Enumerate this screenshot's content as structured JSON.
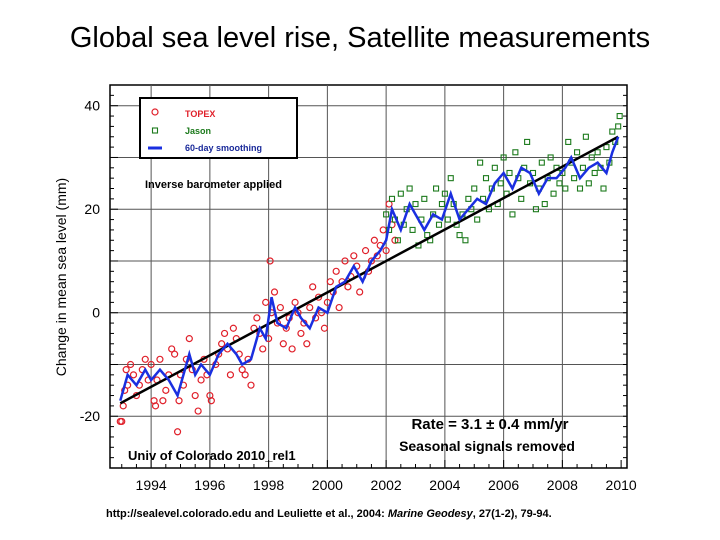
{
  "title": "Global sea level rise, Satellite measurements",
  "source": {
    "text": "http://sealevel.colorado.edu and Leuliette et al., 2004: ",
    "journal": "Marine Geodesy",
    "ref": ", 27(1-2), 79-94."
  },
  "chart_data": {
    "type": "scatter",
    "title": "Global sea level rise, Satellite measurements",
    "xlabel": "",
    "ylabel": "Change in mean sea level (mm)",
    "xlim": [
      1992.6,
      2010.2
    ],
    "ylim": [
      -30,
      44
    ],
    "xticks": [
      "1994",
      "1996",
      "1998",
      "2000",
      "2002",
      "2004",
      "2006",
      "2008",
      "2010"
    ],
    "yticks": [
      "40",
      "20",
      "0",
      "-20"
    ],
    "grid": true,
    "legend_position": "top-left",
    "annotations": [
      "Inverse barometer applied",
      "Rate = 3.1 ± 0.4 mm/yr",
      "Seasonal signals removed",
      "Univ of Colorado 2010_rel1"
    ],
    "colors": {
      "topex": "#e0202a",
      "jason": "#1c7a1c",
      "smoothing": "#1a2fe0",
      "trend": "#000000"
    },
    "series": [
      {
        "name": "TOPEX",
        "marker": "circle",
        "points": [
          [
            1992.95,
            -21
          ],
          [
            1993.0,
            -21
          ],
          [
            1993.05,
            -18
          ],
          [
            1993.1,
            -15
          ],
          [
            1993.15,
            -11
          ],
          [
            1993.2,
            -14
          ],
          [
            1993.3,
            -10
          ],
          [
            1993.4,
            -12
          ],
          [
            1993.5,
            -16
          ],
          [
            1993.6,
            -14
          ],
          [
            1993.7,
            -11
          ],
          [
            1993.8,
            -9
          ],
          [
            1993.9,
            -13
          ],
          [
            1994.0,
            -10
          ],
          [
            1994.1,
            -17
          ],
          [
            1994.15,
            -18
          ],
          [
            1994.2,
            -13
          ],
          [
            1994.3,
            -9
          ],
          [
            1994.4,
            -17
          ],
          [
            1994.5,
            -15
          ],
          [
            1994.6,
            -12
          ],
          [
            1994.7,
            -7
          ],
          [
            1994.8,
            -8
          ],
          [
            1994.9,
            -23
          ],
          [
            1994.95,
            -17
          ],
          [
            1995.0,
            -12
          ],
          [
            1995.1,
            -14
          ],
          [
            1995.2,
            -9
          ],
          [
            1995.3,
            -5
          ],
          [
            1995.4,
            -11
          ],
          [
            1995.5,
            -16
          ],
          [
            1995.6,
            -19
          ],
          [
            1995.7,
            -13
          ],
          [
            1995.8,
            -9
          ],
          [
            1995.9,
            -12
          ],
          [
            1996.0,
            -16
          ],
          [
            1996.05,
            -17
          ],
          [
            1996.2,
            -10
          ],
          [
            1996.3,
            -8
          ],
          [
            1996.4,
            -6
          ],
          [
            1996.5,
            -4
          ],
          [
            1996.6,
            -7
          ],
          [
            1996.7,
            -12
          ],
          [
            1996.8,
            -3
          ],
          [
            1996.9,
            -5
          ],
          [
            1997.0,
            -8
          ],
          [
            1997.1,
            -11
          ],
          [
            1997.2,
            -12
          ],
          [
            1997.3,
            -9
          ],
          [
            1997.4,
            -14
          ],
          [
            1997.5,
            -3
          ],
          [
            1997.6,
            -1
          ],
          [
            1997.7,
            -4
          ],
          [
            1997.8,
            -7
          ],
          [
            1997.9,
            2
          ],
          [
            1998.0,
            -5
          ],
          [
            1998.05,
            10
          ],
          [
            1998.1,
            0
          ],
          [
            1998.2,
            4
          ],
          [
            1998.3,
            -2
          ],
          [
            1998.4,
            1
          ],
          [
            1998.5,
            -6
          ],
          [
            1998.6,
            -3
          ],
          [
            1998.7,
            -1
          ],
          [
            1998.8,
            -7
          ],
          [
            1998.9,
            2
          ],
          [
            1999.0,
            0
          ],
          [
            1999.1,
            -4
          ],
          [
            1999.2,
            -2
          ],
          [
            1999.3,
            -6
          ],
          [
            1999.4,
            1
          ],
          [
            1999.5,
            5
          ],
          [
            1999.6,
            -1
          ],
          [
            1999.7,
            3
          ],
          [
            1999.8,
            0
          ],
          [
            1999.9,
            -3
          ],
          [
            2000.0,
            2
          ],
          [
            2000.1,
            6
          ],
          [
            2000.2,
            4
          ],
          [
            2000.3,
            8
          ],
          [
            2000.4,
            1
          ],
          [
            2000.5,
            6
          ],
          [
            2000.6,
            10
          ],
          [
            2000.7,
            5
          ],
          [
            2000.8,
            7
          ],
          [
            2000.9,
            11
          ],
          [
            2001.0,
            9
          ],
          [
            2001.1,
            4
          ],
          [
            2001.2,
            7
          ],
          [
            2001.3,
            12
          ],
          [
            2001.4,
            8
          ],
          [
            2001.5,
            10
          ],
          [
            2001.6,
            14
          ],
          [
            2001.7,
            11
          ],
          [
            2001.8,
            13
          ],
          [
            2001.9,
            16
          ],
          [
            2002.0,
            12
          ],
          [
            2002.1,
            21
          ],
          [
            2002.2,
            17
          ],
          [
            2002.3,
            14
          ]
        ]
      },
      {
        "name": "Jason",
        "marker": "square",
        "points": [
          [
            2002.0,
            19
          ],
          [
            2002.1,
            16
          ],
          [
            2002.2,
            22
          ],
          [
            2002.3,
            18
          ],
          [
            2002.4,
            14
          ],
          [
            2002.5,
            23
          ],
          [
            2002.6,
            17
          ],
          [
            2002.7,
            20
          ],
          [
            2002.8,
            24
          ],
          [
            2002.9,
            16
          ],
          [
            2003.0,
            21
          ],
          [
            2003.1,
            13
          ],
          [
            2003.2,
            18
          ],
          [
            2003.3,
            22
          ],
          [
            2003.4,
            15
          ],
          [
            2003.5,
            14
          ],
          [
            2003.6,
            19
          ],
          [
            2003.7,
            24
          ],
          [
            2003.8,
            17
          ],
          [
            2003.9,
            21
          ],
          [
            2004.0,
            23
          ],
          [
            2004.1,
            18
          ],
          [
            2004.2,
            26
          ],
          [
            2004.3,
            21
          ],
          [
            2004.4,
            17
          ],
          [
            2004.5,
            15
          ],
          [
            2004.6,
            19
          ],
          [
            2004.7,
            14
          ],
          [
            2004.8,
            22
          ],
          [
            2004.9,
            20
          ],
          [
            2005.0,
            24
          ],
          [
            2005.1,
            18
          ],
          [
            2005.2,
            29
          ],
          [
            2005.3,
            22
          ],
          [
            2005.4,
            26
          ],
          [
            2005.5,
            20
          ],
          [
            2005.6,
            24
          ],
          [
            2005.7,
            28
          ],
          [
            2005.8,
            21
          ],
          [
            2005.9,
            25
          ],
          [
            2006.0,
            30
          ],
          [
            2006.1,
            23
          ],
          [
            2006.2,
            27
          ],
          [
            2006.3,
            19
          ],
          [
            2006.4,
            31
          ],
          [
            2006.5,
            26
          ],
          [
            2006.6,
            22
          ],
          [
            2006.7,
            28
          ],
          [
            2006.8,
            33
          ],
          [
            2006.9,
            25
          ],
          [
            2007.0,
            27
          ],
          [
            2007.1,
            20
          ],
          [
            2007.2,
            24
          ],
          [
            2007.3,
            29
          ],
          [
            2007.4,
            21
          ],
          [
            2007.5,
            26
          ],
          [
            2007.6,
            30
          ],
          [
            2007.7,
            23
          ],
          [
            2007.8,
            28
          ],
          [
            2007.9,
            25
          ],
          [
            2008.0,
            27
          ],
          [
            2008.1,
            24
          ],
          [
            2008.2,
            33
          ],
          [
            2008.3,
            29
          ],
          [
            2008.4,
            26
          ],
          [
            2008.5,
            31
          ],
          [
            2008.6,
            24
          ],
          [
            2008.7,
            28
          ],
          [
            2008.8,
            34
          ],
          [
            2008.9,
            25
          ],
          [
            2009.0,
            30
          ],
          [
            2009.1,
            27
          ],
          [
            2009.2,
            31
          ],
          [
            2009.3,
            28
          ],
          [
            2009.4,
            24
          ],
          [
            2009.5,
            32
          ],
          [
            2009.6,
            29
          ],
          [
            2009.7,
            35
          ],
          [
            2009.8,
            33
          ],
          [
            2009.9,
            36
          ],
          [
            2009.95,
            38
          ]
        ]
      },
      {
        "name": "60-day smoothing",
        "marker": "line",
        "points": [
          [
            1992.95,
            -17
          ],
          [
            1993.2,
            -12
          ],
          [
            1993.5,
            -14
          ],
          [
            1993.8,
            -11
          ],
          [
            1994.0,
            -13
          ],
          [
            1994.3,
            -11
          ],
          [
            1994.6,
            -13
          ],
          [
            1994.9,
            -16
          ],
          [
            1995.1,
            -12
          ],
          [
            1995.3,
            -8
          ],
          [
            1995.5,
            -12
          ],
          [
            1995.7,
            -10
          ],
          [
            1996.0,
            -12
          ],
          [
            1996.3,
            -8
          ],
          [
            1996.6,
            -6
          ],
          [
            1996.9,
            -8
          ],
          [
            1997.1,
            -10
          ],
          [
            1997.4,
            -9
          ],
          [
            1997.7,
            -3
          ],
          [
            1997.9,
            -5
          ],
          [
            1998.1,
            3
          ],
          [
            1998.3,
            -2
          ],
          [
            1998.6,
            -3
          ],
          [
            1998.9,
            1
          ],
          [
            1999.1,
            -1
          ],
          [
            1999.4,
            -3
          ],
          [
            1999.7,
            1
          ],
          [
            2000.0,
            0
          ],
          [
            2000.3,
            5
          ],
          [
            2000.6,
            6
          ],
          [
            2000.9,
            9
          ],
          [
            2001.2,
            6
          ],
          [
            2001.5,
            10
          ],
          [
            2001.8,
            12
          ],
          [
            2002.0,
            14
          ],
          [
            2002.2,
            20
          ],
          [
            2002.5,
            16
          ],
          [
            2002.8,
            21
          ],
          [
            2003.0,
            19
          ],
          [
            2003.3,
            16
          ],
          [
            2003.6,
            19
          ],
          [
            2003.9,
            18
          ],
          [
            2004.2,
            23
          ],
          [
            2004.5,
            18
          ],
          [
            2004.8,
            20
          ],
          [
            2005.1,
            22
          ],
          [
            2005.4,
            21
          ],
          [
            2005.7,
            25
          ],
          [
            2006.0,
            27
          ],
          [
            2006.3,
            24
          ],
          [
            2006.6,
            28
          ],
          [
            2006.9,
            27
          ],
          [
            2007.2,
            23
          ],
          [
            2007.5,
            26
          ],
          [
            2007.8,
            26
          ],
          [
            2008.1,
            28
          ],
          [
            2008.3,
            30
          ],
          [
            2008.6,
            26
          ],
          [
            2008.9,
            28
          ],
          [
            2009.2,
            29
          ],
          [
            2009.5,
            27
          ],
          [
            2009.7,
            31
          ],
          [
            2009.9,
            34
          ]
        ]
      },
      {
        "marker": "trend",
        "points": [
          [
            1992.95,
            -17.5
          ],
          [
            2009.9,
            34
          ]
        ]
      }
    ]
  }
}
